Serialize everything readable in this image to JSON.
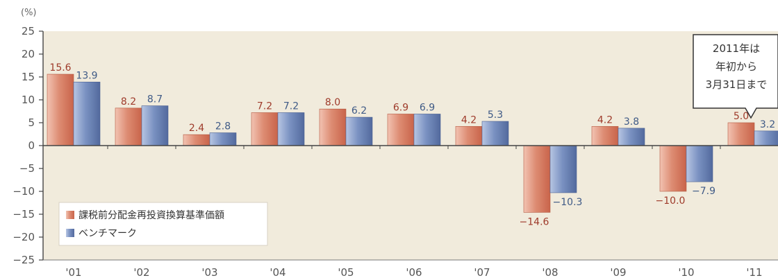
{
  "chart_data": {
    "type": "bar",
    "unit_label": "(%)",
    "categories": [
      "'01",
      "'02",
      "'03",
      "'04",
      "'05",
      "'06",
      "'07",
      "'08",
      "'09",
      "'10",
      "'11"
    ],
    "series": [
      {
        "name": "課税前分配金再投資換算基準価額",
        "color": "#d9826b",
        "values": [
          15.6,
          8.2,
          2.4,
          7.2,
          8.0,
          6.9,
          4.2,
          -14.6,
          4.2,
          -10.0,
          5.0
        ],
        "labels": [
          "15.6",
          "8.2",
          "2.4",
          "7.2",
          "8.0",
          "6.9",
          "4.2",
          "-14.6",
          "4.2",
          "-10.0",
          "5.0"
        ]
      },
      {
        "name": "ベンチマーク",
        "color": "#6f86b8",
        "values": [
          13.9,
          8.7,
          2.8,
          7.2,
          6.2,
          6.9,
          5.3,
          -10.3,
          3.8,
          -7.9,
          3.2
        ],
        "labels": [
          "13.9",
          "8.7",
          "2.8",
          "7.2",
          "6.2",
          "6.9",
          "5.3",
          "-10.3",
          "3.8",
          "-7.9",
          "3.2"
        ]
      }
    ],
    "ylim": [
      -25,
      25
    ],
    "yticks": [
      {
        "value": 25,
        "label": "25"
      },
      {
        "value": 20,
        "label": "20"
      },
      {
        "value": 15,
        "label": "15"
      },
      {
        "value": 10,
        "label": "10"
      },
      {
        "value": 5,
        "label": "5"
      },
      {
        "value": 0,
        "label": "0"
      },
      {
        "value": -5,
        "label": "-5"
      },
      {
        "value": -10,
        "label": "-10"
      },
      {
        "value": -15,
        "label": "-15"
      },
      {
        "value": -20,
        "label": "-20"
      },
      {
        "value": -25,
        "label": "-25"
      }
    ],
    "legend_position": "bottom-left",
    "annotation": {
      "lines": [
        "2011年は",
        "年初から",
        "3月31日まで"
      ],
      "category": "'11"
    }
  }
}
